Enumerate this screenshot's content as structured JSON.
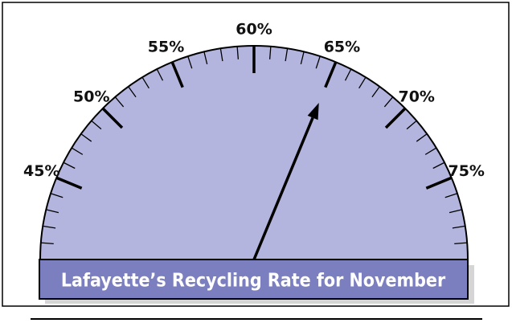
{
  "chart_data": {
    "type": "gauge",
    "title": "Lafayette’s Recycling Rate for November",
    "value": 65,
    "range": [
      40,
      80
    ],
    "ticks": [
      {
        "value": 45,
        "label": "45%"
      },
      {
        "value": 50,
        "label": "50%"
      },
      {
        "value": 55,
        "label": "55%"
      },
      {
        "value": 60,
        "label": "60%"
      },
      {
        "value": 65,
        "label": "65%"
      },
      {
        "value": 70,
        "label": "70%"
      },
      {
        "value": 75,
        "label": "75%"
      }
    ],
    "minor_ticks": [
      40,
      41,
      42,
      43,
      44,
      46,
      47,
      48,
      49,
      51,
      52,
      53,
      54,
      56,
      57,
      58,
      59,
      61,
      62,
      63,
      64,
      66,
      67,
      68,
      69,
      71,
      72,
      73,
      74,
      76,
      77,
      78,
      79,
      80
    ],
    "color": "#b3b5de",
    "banner_color": "#7b7fc0"
  }
}
